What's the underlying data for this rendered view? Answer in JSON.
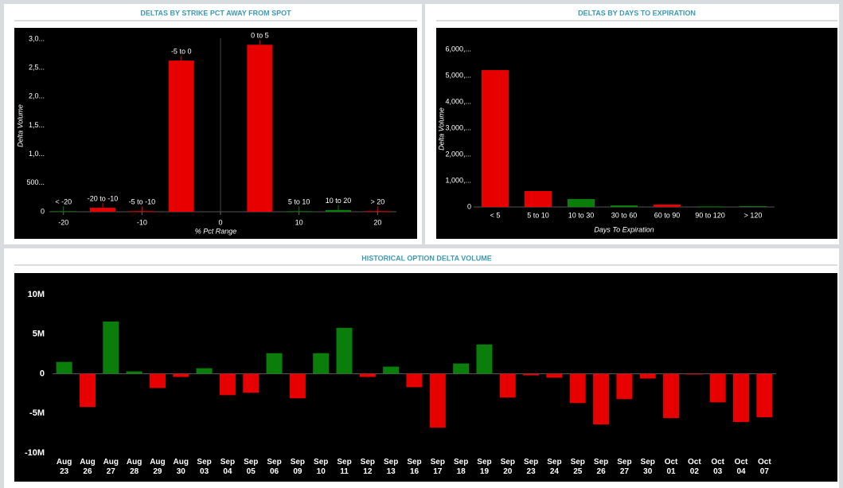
{
  "chart_data": [
    {
      "type": "bar",
      "title": "DELTAS BY STRIKE PCT AWAY FROM SPOT",
      "x_label": "% Pct Range",
      "y_label": "Delta Volume",
      "categories": [
        "< -20",
        "-20 to -10",
        "-5 to -10",
        "-5 to 0",
        "0 to 5",
        "5 to 10",
        "10 to 20",
        "> 20"
      ],
      "x": [
        -20,
        -15,
        -10,
        -5,
        5,
        10,
        15,
        20
      ],
      "values": [
        10,
        70,
        10,
        2625,
        2900,
        10,
        30,
        10
      ],
      "colors": [
        "#0a7d0a",
        "#e60000",
        "#e60000",
        "#e60000",
        "#e60000",
        "#0a7d0a",
        "#0a7d0a",
        "#e60000"
      ],
      "xlim": [
        -22,
        22.5
      ],
      "xticks": [
        -20,
        -10,
        0,
        10,
        20
      ],
      "ylim": [
        0,
        3000
      ],
      "yticks": [
        0,
        {
          "value": 500,
          "label": "500..."
        },
        {
          "value": 1000,
          "label": "1,0..."
        },
        {
          "value": 1500,
          "label": "1,5..."
        },
        {
          "value": 2000,
          "label": "2,0..."
        },
        {
          "value": 2500,
          "label": "2,5..."
        },
        {
          "value": 3000,
          "label": "3,0..."
        }
      ]
    },
    {
      "type": "bar",
      "title": "DELTAS BY DAYS TO EXPIRATION",
      "x_label": "Days To Expiration",
      "y_label": "Delta Volume",
      "categories": [
        "< 5",
        "5 to 10",
        "10 to 30",
        "30 to 60",
        "60 to 90",
        "90 to 120",
        "> 120"
      ],
      "values": [
        5210,
        606,
        303,
        60,
        90,
        20,
        30
      ],
      "colors": [
        "#e60000",
        "#e60000",
        "#0a7d0a",
        "#0a7d0a",
        "#e60000",
        "#0a7d0a",
        "#0a7d0a"
      ],
      "ylim": [
        0,
        6000
      ],
      "yticks": [
        0,
        {
          "value": 1000,
          "label": "1,000,..."
        },
        {
          "value": 2000,
          "label": "2,000,..."
        },
        {
          "value": 3000,
          "label": "3,000,..."
        },
        {
          "value": 4000,
          "label": "4,000,..."
        },
        {
          "value": 5000,
          "label": "5,000,..."
        },
        {
          "value": 6000,
          "label": "6,000,..."
        }
      ]
    },
    {
      "type": "bar",
      "title": "HISTORICAL OPTION DELTA VOLUME",
      "categories": [
        "Aug 23",
        "Aug 26",
        "Aug 27",
        "Aug 28",
        "Aug 29",
        "Aug 30",
        "Sep 03",
        "Sep 04",
        "Sep 05",
        "Sep 06",
        "Sep 09",
        "Sep 10",
        "Sep 11",
        "Sep 12",
        "Sep 13",
        "Sep 16",
        "Sep 17",
        "Sep 18",
        "Sep 19",
        "Sep 20",
        "Sep 23",
        "Sep 24",
        "Sep 25",
        "Sep 26",
        "Sep 27",
        "Sep 30",
        "Oct 01",
        "Oct 02",
        "Oct 03",
        "Oct 04",
        "Oct 07"
      ],
      "values": [
        1500000,
        -4200000,
        6600000,
        300000,
        -1800000,
        -400000,
        700000,
        -2700000,
        -2400000,
        2600000,
        -3100000,
        2600000,
        5800000,
        -400000,
        900000,
        -1700000,
        -6800000,
        1300000,
        3700000,
        -3000000,
        -200000,
        -500000,
        -3700000,
        -6400000,
        -3200000,
        -600000,
        -5600000,
        -100000,
        -3600000,
        -6100000,
        -5500000
      ],
      "positive_color": "#0a7d0a",
      "negative_color": "#e60000",
      "ylim": [
        -10000000,
        10000000
      ],
      "yticks": [
        {
          "value": -10000000,
          "label": "-10M"
        },
        {
          "value": -5000000,
          "label": "-5M"
        },
        0,
        {
          "value": 5000000,
          "label": "5M"
        },
        {
          "value": 10000000,
          "label": "10M"
        }
      ]
    }
  ]
}
